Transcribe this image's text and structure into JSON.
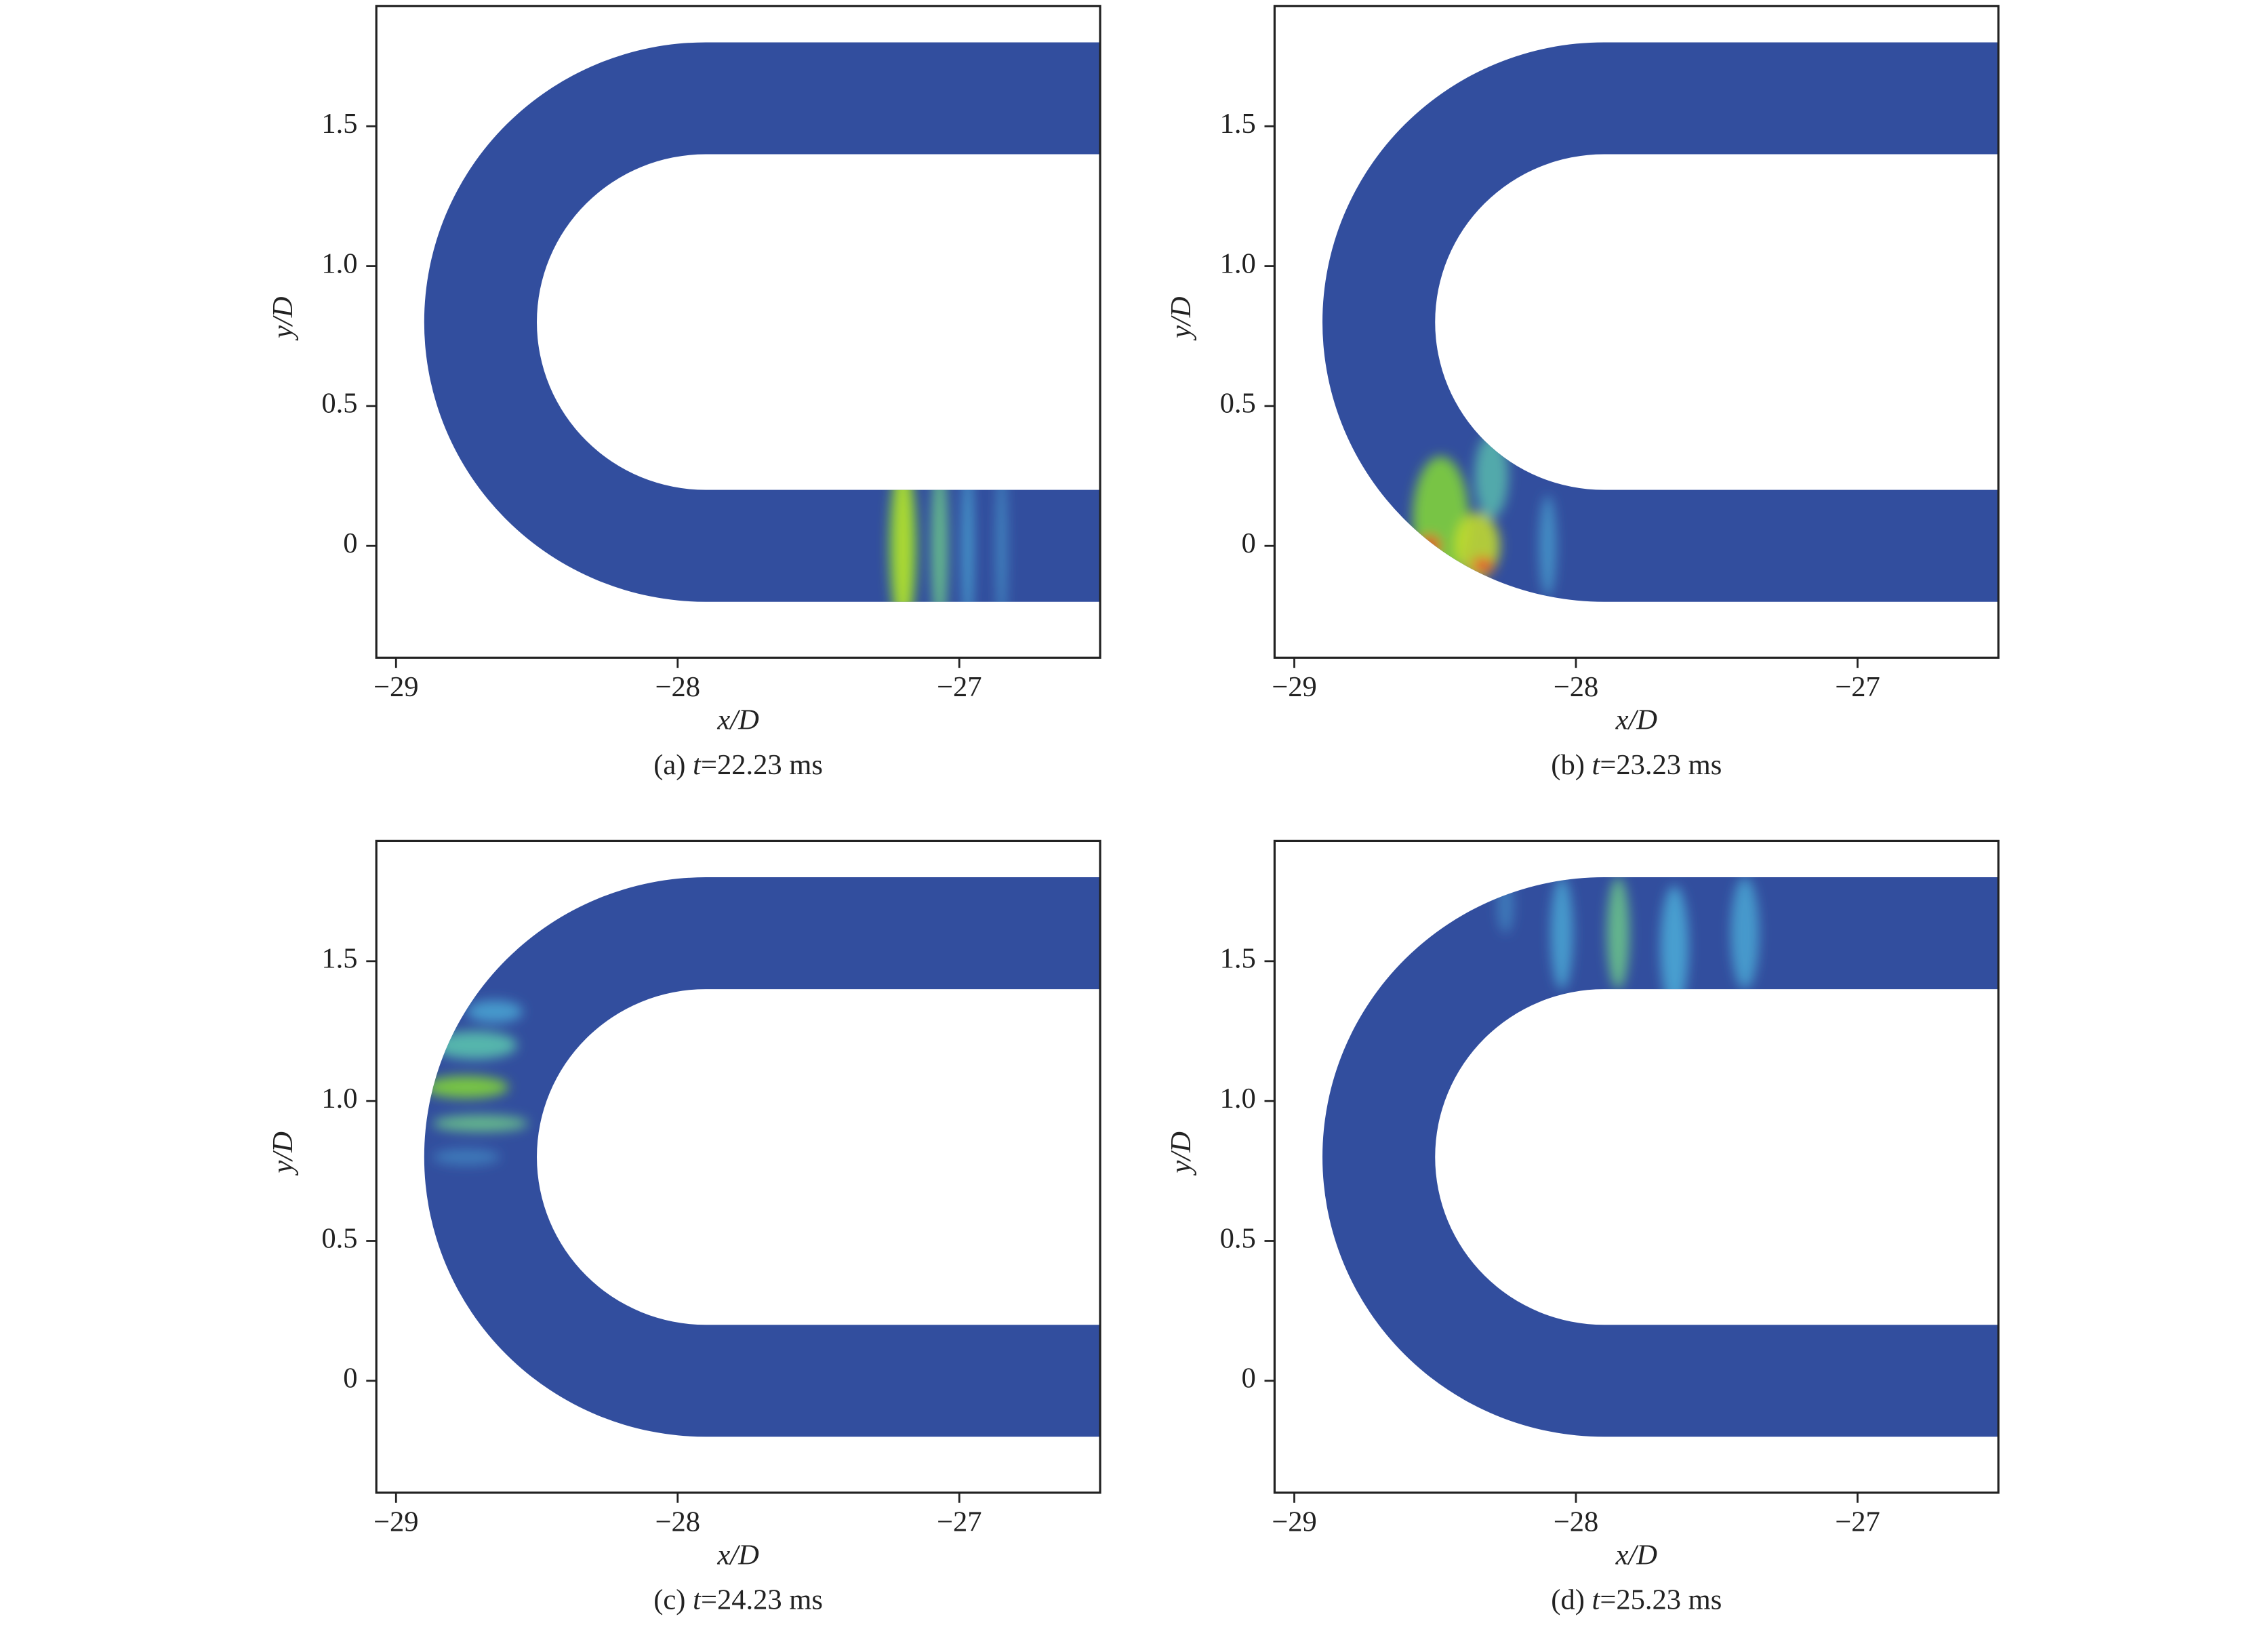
{
  "chart_data": [
    {
      "type": "contour",
      "xlabel": "x/D",
      "ylabel": "y/D",
      "caption_label": "(a)",
      "caption_var": "t",
      "caption_text": "=22.23 ms",
      "xlim": [
        -29.07,
        -26.5
      ],
      "ylim": [
        -0.4,
        1.93
      ],
      "xticks": [
        {
          "value": -29,
          "label": "−29"
        },
        {
          "value": -28,
          "label": "−28"
        },
        {
          "value": -27,
          "label": "−27"
        }
      ],
      "yticks": [
        0,
        0.5,
        {
          "value": 1,
          "label": "1.0"
        },
        1.5
      ],
      "color": "#324e9e"
    },
    {
      "type": "contour",
      "xlabel": "x/D",
      "ylabel": "y/D",
      "caption_label": "(b)",
      "caption_var": "t",
      "caption_text": "=23.23 ms",
      "xlim": [
        -29.07,
        -26.5
      ],
      "ylim": [
        -0.4,
        1.93
      ],
      "xticks": [
        {
          "value": -29,
          "label": "−29"
        },
        {
          "value": -28,
          "label": "−28"
        },
        {
          "value": -27,
          "label": "−27"
        }
      ],
      "yticks": [
        0,
        0.5,
        {
          "value": 1,
          "label": "1.0"
        },
        1.5
      ],
      "color": "#324e9e"
    },
    {
      "type": "contour",
      "xlabel": "x/D",
      "ylabel": "y/D",
      "caption_label": "(c)",
      "caption_var": "t",
      "caption_text": "=24.23 ms",
      "xlim": [
        -29.07,
        -26.5
      ],
      "ylim": [
        -0.4,
        1.93
      ],
      "xticks": [
        {
          "value": -29,
          "label": "−29"
        },
        {
          "value": -28,
          "label": "−28"
        },
        {
          "value": -27,
          "label": "−27"
        }
      ],
      "yticks": [
        0,
        0.5,
        {
          "value": 1,
          "label": "1.0"
        },
        1.5
      ],
      "color": "#324e9e"
    },
    {
      "type": "contour",
      "xlabel": "x/D",
      "ylabel": "y/D",
      "caption_label": "(d)",
      "caption_var": "t",
      "caption_text": "=25.23 ms",
      "xlim": [
        -29.07,
        -26.5
      ],
      "ylim": [
        -0.4,
        1.93
      ],
      "xticks": [
        {
          "value": -29,
          "label": "−29"
        },
        {
          "value": -28,
          "label": "−28"
        },
        {
          "value": -27,
          "label": "−27"
        }
      ],
      "yticks": [
        0,
        0.5,
        {
          "value": 1,
          "label": "1.0"
        },
        1.5
      ],
      "color": "#324e9e"
    }
  ]
}
